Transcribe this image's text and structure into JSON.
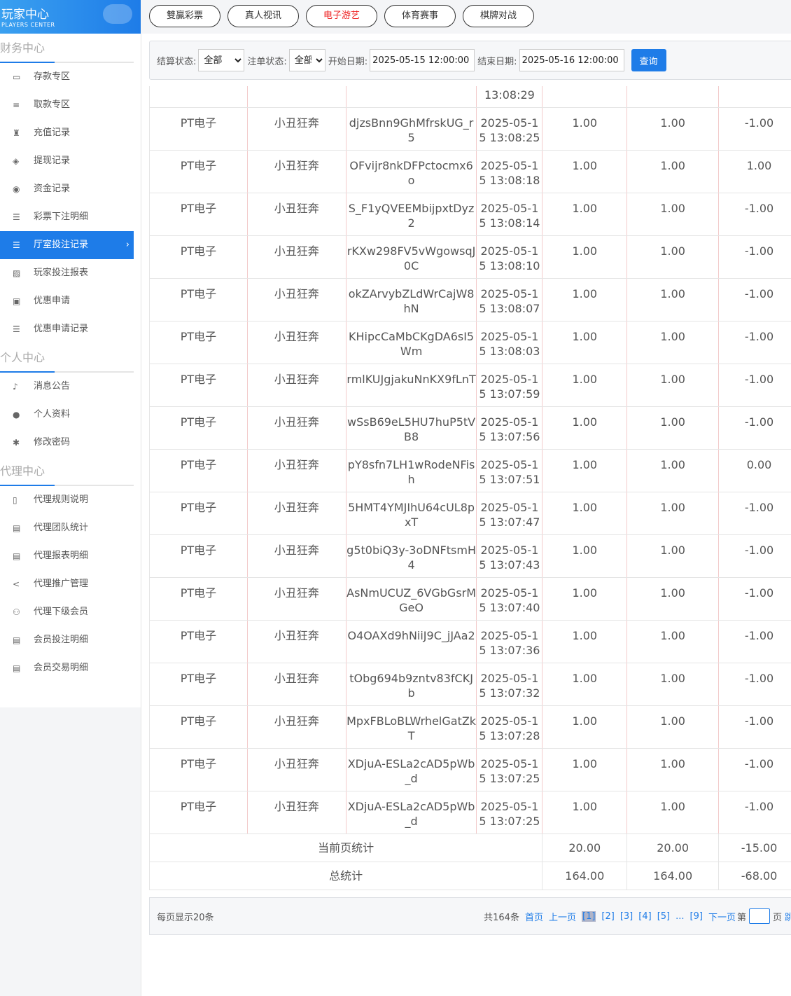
{
  "sidebar": {
    "logo_cn": "玩家中心",
    "logo_en": "PLAYERS CENTER",
    "sections": [
      {
        "title": "财务中心",
        "items": [
          {
            "label": "存款专区",
            "icon": "card-icon"
          },
          {
            "label": "取款专区",
            "icon": "cash-icon"
          },
          {
            "label": "充值记录",
            "icon": "bag-icon"
          },
          {
            "label": "提现记录",
            "icon": "tag-icon"
          },
          {
            "label": "资金记录",
            "icon": "money-icon"
          },
          {
            "label": "彩票下注明细",
            "icon": "list-icon"
          },
          {
            "label": "厅室投注记录",
            "icon": "list-icon",
            "active": true
          },
          {
            "label": "玩家投注报表",
            "icon": "chart-icon"
          },
          {
            "label": "优惠申请",
            "icon": "gift-icon"
          },
          {
            "label": "优惠申请记录",
            "icon": "list-icon"
          }
        ]
      },
      {
        "title": "个人中心",
        "items": [
          {
            "label": "消息公告",
            "icon": "bell-icon"
          },
          {
            "label": "个人资料",
            "icon": "user-icon"
          },
          {
            "label": "修改密码",
            "icon": "gear-icon"
          }
        ]
      },
      {
        "title": "代理中心",
        "items": [
          {
            "label": "代理规则说明",
            "icon": "file-icon"
          },
          {
            "label": "代理团队统计",
            "icon": "doc-icon"
          },
          {
            "label": "代理报表明细",
            "icon": "doc-icon"
          },
          {
            "label": "代理推广管理",
            "icon": "share-icon"
          },
          {
            "label": "代理下级会员",
            "icon": "users-icon"
          },
          {
            "label": "会员投注明细",
            "icon": "doc-icon"
          },
          {
            "label": "会员交易明细",
            "icon": "doc-icon"
          }
        ]
      }
    ]
  },
  "tabs": [
    {
      "label": "雙贏彩票"
    },
    {
      "label": "真人视讯"
    },
    {
      "label": "电子游艺",
      "active": true
    },
    {
      "label": "体育赛事"
    },
    {
      "label": "棋牌对战"
    }
  ],
  "filter": {
    "settle_label": "结算状态:",
    "settle_value": "全部",
    "order_label": "注单状态:",
    "order_value": "全部",
    "start_label": "开始日期:",
    "start_value": "2025-05-15 12:00:00",
    "end_label": "结束日期:",
    "end_value": "2025-05-16 12:00:00",
    "query": "查询"
  },
  "partial_row_time": "13:08:29",
  "rows": [
    [
      "PT电子",
      "小丑狂奔",
      "djzsBnn9GhMfrskUG_r5",
      "2025-05-15 13:08:25",
      "1.00",
      "1.00",
      "-1.00"
    ],
    [
      "PT电子",
      "小丑狂奔",
      "OFvijr8nkDFPctocmx6o",
      "2025-05-15 13:08:18",
      "1.00",
      "1.00",
      "1.00"
    ],
    [
      "PT电子",
      "小丑狂奔",
      "S_F1yQVEEMbijpxtDyz2",
      "2025-05-15 13:08:14",
      "1.00",
      "1.00",
      "-1.00"
    ],
    [
      "PT电子",
      "小丑狂奔",
      "rKXw298FV5vWgowsqJ0C",
      "2025-05-15 13:08:10",
      "1.00",
      "1.00",
      "-1.00"
    ],
    [
      "PT电子",
      "小丑狂奔",
      "okZArvybZLdWrCajW8hN",
      "2025-05-15 13:08:07",
      "1.00",
      "1.00",
      "-1.00"
    ],
    [
      "PT电子",
      "小丑狂奔",
      "KHipcCaMbCKgDA6sI5Wm",
      "2025-05-15 13:08:03",
      "1.00",
      "1.00",
      "-1.00"
    ],
    [
      "PT电子",
      "小丑狂奔",
      "rmlKUJgjakuNnKX9fLnT",
      "2025-05-15 13:07:59",
      "1.00",
      "1.00",
      "-1.00"
    ],
    [
      "PT电子",
      "小丑狂奔",
      "wSsB69eL5HU7huP5tVB8",
      "2025-05-15 13:07:56",
      "1.00",
      "1.00",
      "-1.00"
    ],
    [
      "PT电子",
      "小丑狂奔",
      "pY8sfn7LH1wRodeNFish",
      "2025-05-15 13:07:51",
      "1.00",
      "1.00",
      "0.00"
    ],
    [
      "PT电子",
      "小丑狂奔",
      "5HMT4YMJIhU64cUL8pxT",
      "2025-05-15 13:07:47",
      "1.00",
      "1.00",
      "-1.00"
    ],
    [
      "PT电子",
      "小丑狂奔",
      "g5t0biQ3y-3oDNFtsmH4",
      "2025-05-15 13:07:43",
      "1.00",
      "1.00",
      "-1.00"
    ],
    [
      "PT电子",
      "小丑狂奔",
      "AsNmUCUZ_6VGbGsrMGeO",
      "2025-05-15 13:07:40",
      "1.00",
      "1.00",
      "-1.00"
    ],
    [
      "PT电子",
      "小丑狂奔",
      "O4OAXd9hNiiJ9C_jJAa2",
      "2025-05-15 13:07:36",
      "1.00",
      "1.00",
      "-1.00"
    ],
    [
      "PT电子",
      "小丑狂奔",
      "tObg694b9zntv83fCKJb",
      "2025-05-15 13:07:32",
      "1.00",
      "1.00",
      "-1.00"
    ],
    [
      "PT电子",
      "小丑狂奔",
      "MpxFBLoBLWrhelGatZkT",
      "2025-05-15 13:07:28",
      "1.00",
      "1.00",
      "-1.00"
    ],
    [
      "PT电子",
      "小丑狂奔",
      "XDjuA-ESLa2cAD5pWb_d",
      "2025-05-15 13:07:25",
      "1.00",
      "1.00",
      "-1.00"
    ],
    [
      "PT电子",
      "小丑狂奔",
      "XDjuA-ESLa2cAD5pWb_d",
      "2025-05-15 13:07:25",
      "1.00",
      "1.00",
      "-1.00"
    ]
  ],
  "summary": [
    {
      "label": "当前页统计",
      "v": [
        "20.00",
        "20.00",
        "-15.00"
      ]
    },
    {
      "label": "总统计",
      "v": [
        "164.00",
        "164.00",
        "-68.00"
      ]
    }
  ],
  "pager": {
    "per_page": "每页显示20条",
    "total": "共164条",
    "first": "首页",
    "prev": "上一页",
    "pages": [
      "[1]",
      "[2]",
      "[3]",
      "[4]",
      "[5]",
      "...",
      "[9]"
    ],
    "current": "[1]",
    "next": "下一页",
    "go_prefix": "第",
    "go_suffix": "页",
    "jump": "跳"
  },
  "colors": {
    "accent": "#1e7ce8",
    "active_tab": "#e22222"
  }
}
